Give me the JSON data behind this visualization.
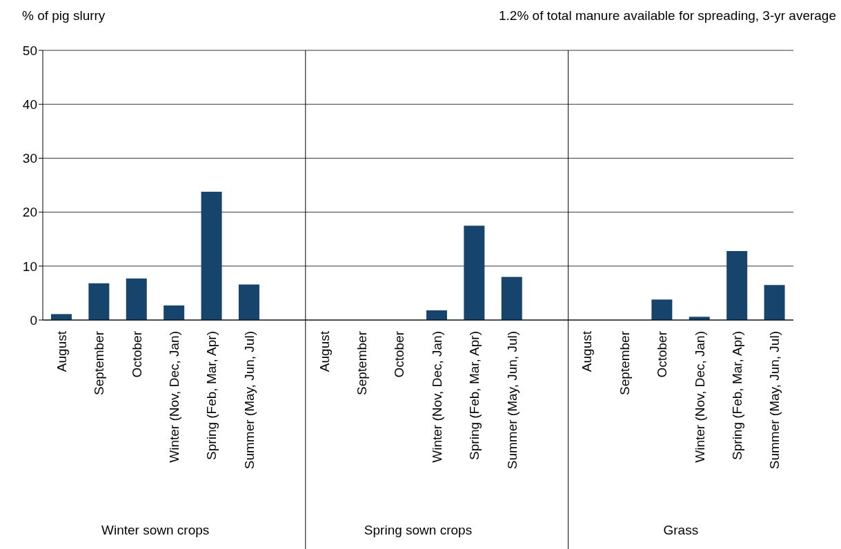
{
  "chart_data": {
    "type": "bar",
    "title": "1.2% of total manure available for spreading, 3-yr average",
    "ylabel": "% of pig slurry",
    "categories": [
      "August",
      "September",
      "October",
      "Winter (Nov, Dec, Jan)",
      "Spring (Feb, Mar, Apr)",
      "Summer (May, Jun, Jul)",
      null,
      "August",
      "September",
      "October",
      "Winter (Nov, Dec, Jan)",
      "Spring (Feb, Mar, Apr)",
      "Summer (May, Jun, Jul)",
      null,
      "August",
      "September",
      "October",
      "Winter (Nov, Dec, Jan)",
      "Spring (Feb, Mar, Apr)",
      "Summer (May, Jun, Jul)"
    ],
    "values": [
      1.1,
      6.8,
      7.7,
      2.7,
      23.8,
      6.6,
      null,
      0,
      0,
      0,
      1.8,
      17.5,
      8.0,
      null,
      0,
      0,
      3.8,
      0.6,
      12.8,
      6.5
    ],
    "color": "#17446d",
    "ylim": [
      0,
      50
    ],
    "yticks": [
      0,
      10,
      20,
      30,
      40,
      50
    ],
    "grid": "y",
    "annotations": [
      "Winter sown crops",
      "Spring sown crops",
      "Grass"
    ]
  }
}
